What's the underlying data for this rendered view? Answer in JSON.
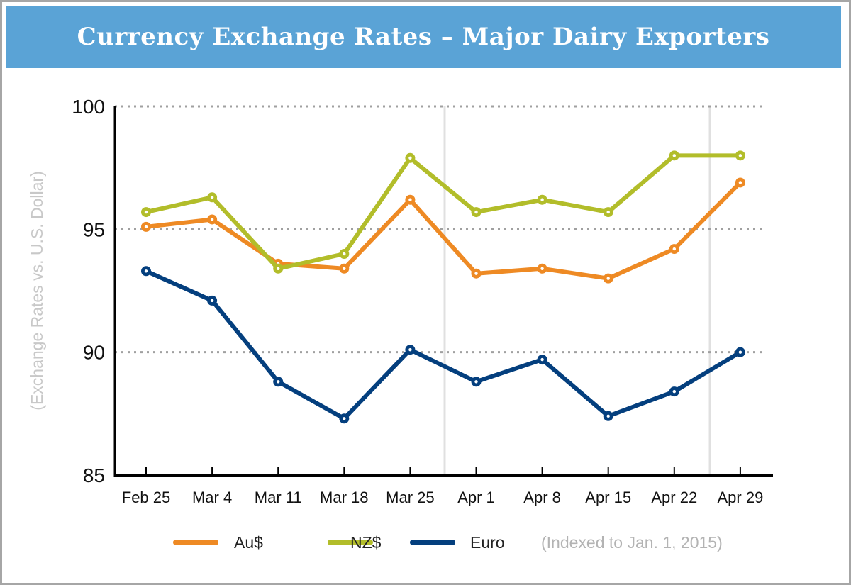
{
  "chart_data": {
    "type": "line",
    "title": "Currency Exchange Rates – Major Dairy Exporters",
    "ylabel": "(Exchange Rates vs. U.S. Dollar)",
    "xlabel": "",
    "categories": [
      "Feb 25",
      "Mar 4",
      "Mar 11",
      "Mar 18",
      "Mar 25",
      "Apr 1",
      "Apr 8",
      "Apr 15",
      "Apr 22",
      "Apr 29"
    ],
    "ylim": [
      85,
      100
    ],
    "yticks": [
      "85",
      "90",
      "95",
      "100"
    ],
    "grid": "dotted horizontal at 90, 95, 100",
    "legend_position": "bottom",
    "note": "(Indexed to Jan. 1, 2015)",
    "series": [
      {
        "name": "Au$",
        "color": "#ee8a24",
        "values": [
          95.1,
          95.4,
          93.6,
          93.4,
          96.2,
          93.2,
          93.4,
          93.0,
          94.2,
          96.9
        ]
      },
      {
        "name": "NZ$",
        "color": "#b2bd2a",
        "values": [
          95.7,
          96.3,
          93.4,
          94.0,
          97.9,
          95.7,
          96.2,
          95.7,
          98.0,
          98.0
        ]
      },
      {
        "name": "Euro",
        "color": "#043f7e",
        "values": [
          93.3,
          92.1,
          88.8,
          87.3,
          90.1,
          88.8,
          89.7,
          87.4,
          88.4,
          90.0
        ]
      }
    ]
  },
  "header_color": "#5aa3d6"
}
